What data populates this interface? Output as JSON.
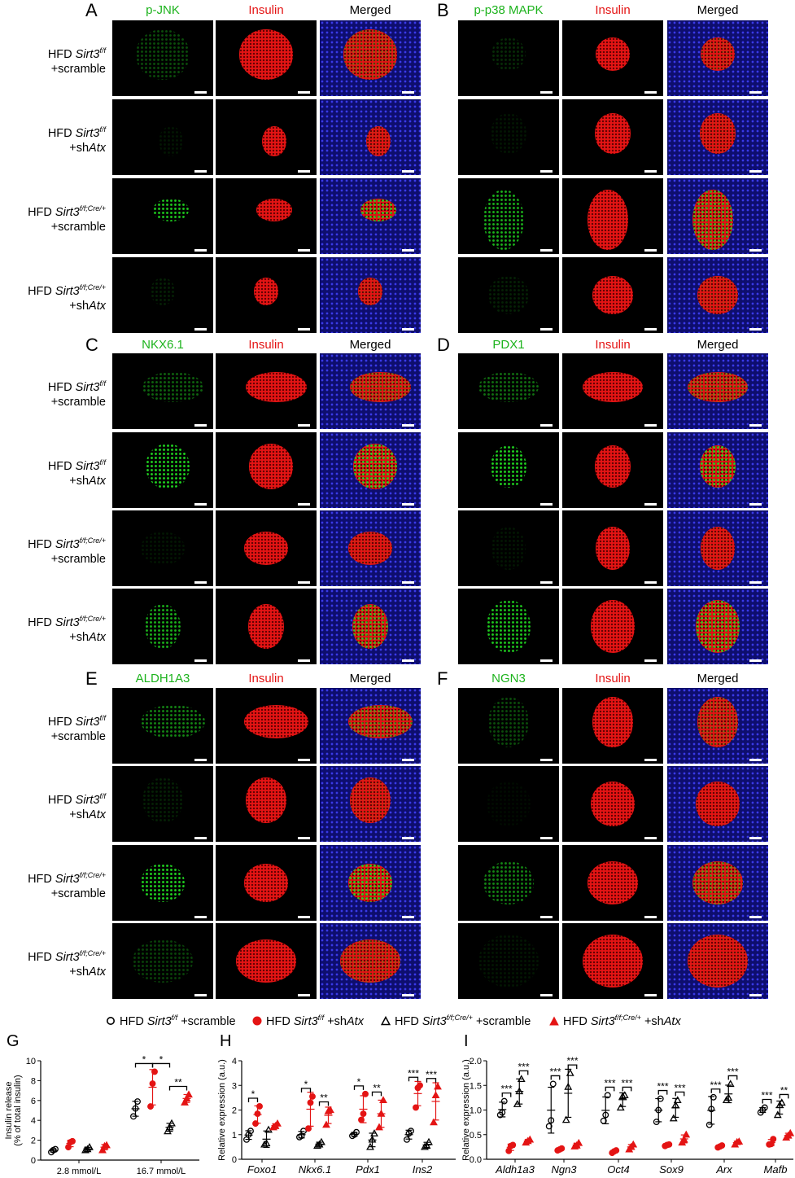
{
  "row_labels": [
    {
      "pre": "HFD ",
      "gene": "Sirt3",
      "genotype": "f/f",
      "l2pre": "+scramble",
      "l2it": ""
    },
    {
      "pre": "HFD ",
      "gene": "Sirt3",
      "genotype": "f/f",
      "l2pre": "+sh",
      "l2it": "Atx"
    },
    {
      "pre": "HFD ",
      "gene": "Sirt3",
      "genotype": "f/f;Cre/+",
      "l2pre": "+scramble",
      "l2it": ""
    },
    {
      "pre": "HFD ",
      "gene": "Sirt3",
      "genotype": "f/f;Cre/+",
      "l2pre": "+sh",
      "l2it": "Atx"
    }
  ],
  "panels": [
    {
      "letter": "A",
      "channels": [
        "p-JNK",
        "Insulin",
        "Merged"
      ]
    },
    {
      "letter": "B",
      "channels": [
        "p-p38 MAPK",
        "Insulin",
        "Merged"
      ]
    },
    {
      "letter": "C",
      "channels": [
        "NKX6.1",
        "Insulin",
        "Merged"
      ]
    },
    {
      "letter": "D",
      "channels": [
        "PDX1",
        "Insulin",
        "Merged"
      ]
    },
    {
      "letter": "E",
      "channels": [
        "ALDH1A3",
        "Insulin",
        "Merged"
      ]
    },
    {
      "letter": "F",
      "channels": [
        "NGN3",
        "Insulin",
        "Merged"
      ]
    }
  ],
  "colors": {
    "green": "#1db31d",
    "red": "#e41414",
    "black": "#000000",
    "blue": "#0e0e6e"
  },
  "legend": [
    {
      "symbol": "open-circle",
      "pre": "HFD ",
      "gene": "Sirt3",
      "genotype": "f/f",
      "post": " +scramble",
      "postit": ""
    },
    {
      "symbol": "filled-circle-red",
      "pre": "HFD ",
      "gene": "Sirt3",
      "genotype": "f/f",
      "post": " +sh",
      "postit": "Atx"
    },
    {
      "symbol": "open-triangle",
      "pre": "HFD ",
      "gene": "Sirt3",
      "genotype": "f/f;Cre/+",
      "post": " +scramble",
      "postit": ""
    },
    {
      "symbol": "filled-triangle-red",
      "pre": "HFD ",
      "gene": "Sirt3",
      "genotype": "f/f;Cre/+",
      "post": " +sh",
      "postit": "Atx"
    }
  ],
  "chart_data": [
    {
      "letter": "G",
      "type": "scatter",
      "ylabel": [
        "Insulin release",
        "(% of total insulin)"
      ],
      "ylim": [
        0,
        10
      ],
      "yticks": [
        0,
        2,
        4,
        6,
        8,
        10
      ],
      "categories": [
        "2.8 mmol/L",
        "16.7 mmol/L"
      ],
      "italic_categories": false,
      "groups": [
        [
          [
            0.8,
            1.0,
            1.1
          ],
          [
            1.3,
            1.8,
            1.9
          ],
          [
            1.0,
            1.1,
            1.3
          ],
          [
            1.0,
            1.4,
            1.5
          ]
        ],
        [
          [
            4.4,
            5.2,
            5.9
          ],
          [
            5.4,
            7.7,
            8.9
          ],
          [
            2.9,
            3.3,
            3.7
          ],
          [
            5.8,
            6.2,
            6.6
          ]
        ]
      ],
      "significance": [
        {
          "category": 1,
          "from": 0,
          "to": 1,
          "label": "*"
        },
        {
          "category": 1,
          "from": 1,
          "to": 2,
          "label": "*"
        },
        {
          "category": 1,
          "from": 2,
          "to": 3,
          "label": "**"
        }
      ]
    },
    {
      "letter": "H",
      "type": "scatter",
      "ylabel": [
        "Relative expression (a.u.)"
      ],
      "ylim": [
        0,
        4
      ],
      "yticks": [
        0,
        1,
        2,
        3,
        4
      ],
      "categories": [
        "Foxo1",
        "Nkx6.1",
        "Pdx1",
        "Ins2"
      ],
      "italic_categories": true,
      "groups": [
        [
          [
            0.8,
            1.0,
            1.15
          ],
          [
            1.45,
            1.85,
            2.15
          ],
          [
            0.6,
            0.65,
            1.2
          ],
          [
            1.3,
            1.35,
            1.45
          ]
        ],
        [
          [
            0.9,
            0.95,
            1.15
          ],
          [
            1.25,
            2.3,
            2.55
          ],
          [
            0.55,
            0.6,
            0.7
          ],
          [
            1.4,
            1.95,
            2.0
          ]
        ],
        [
          [
            0.95,
            1.0,
            1.1
          ],
          [
            1.6,
            1.85,
            2.65
          ],
          [
            0.5,
            0.8,
            1.05
          ],
          [
            1.3,
            1.85,
            2.4
          ]
        ],
        [
          [
            0.8,
            1.05,
            1.15
          ],
          [
            2.1,
            2.9,
            3.0
          ],
          [
            0.5,
            0.55,
            0.7
          ],
          [
            1.5,
            2.6,
            2.95
          ]
        ]
      ],
      "significance": [
        {
          "category": 0,
          "from": 0,
          "to": 1,
          "label": "*"
        },
        {
          "category": 1,
          "from": 0,
          "to": 1,
          "label": "*"
        },
        {
          "category": 1,
          "from": 2,
          "to": 3,
          "label": "**"
        },
        {
          "category": 2,
          "from": 0,
          "to": 1,
          "label": "*"
        },
        {
          "category": 2,
          "from": 2,
          "to": 3,
          "label": "**"
        },
        {
          "category": 3,
          "from": 0,
          "to": 1,
          "label": "***"
        },
        {
          "category": 3,
          "from": 2,
          "to": 3,
          "label": "***"
        }
      ]
    },
    {
      "letter": "I",
      "type": "scatter",
      "ylabel": [
        "Relative expression (a.u.)"
      ],
      "ylim": [
        0,
        2
      ],
      "yticks": [
        0.0,
        0.5,
        1.0,
        1.5,
        2.0
      ],
      "categories": [
        "Aldh1a3",
        "Ngn3",
        "Oct4",
        "Sox9",
        "Arx",
        "Mafb"
      ],
      "italic_categories": true,
      "groups": [
        [
          [
            0.9,
            0.95,
            1.18
          ],
          [
            0.17,
            0.27,
            0.29
          ],
          [
            1.12,
            1.38,
            1.63
          ],
          [
            0.34,
            0.37,
            0.4
          ]
        ],
        [
          [
            0.67,
            0.79,
            1.53
          ],
          [
            0.18,
            0.2,
            0.22
          ],
          [
            0.8,
            1.47,
            1.75
          ],
          [
            0.26,
            0.28,
            0.33
          ]
        ],
        [
          [
            0.78,
            0.9,
            1.3
          ],
          [
            0.13,
            0.16,
            0.18
          ],
          [
            1.05,
            1.28,
            1.3
          ],
          [
            0.2,
            0.25,
            0.3
          ]
        ],
        [
          [
            0.76,
            1.0,
            1.23
          ],
          [
            0.27,
            0.29,
            0.3
          ],
          [
            0.83,
            1.1,
            1.2
          ],
          [
            0.34,
            0.4,
            0.5
          ]
        ],
        [
          [
            0.7,
            1.02,
            1.26
          ],
          [
            0.24,
            0.26,
            0.28
          ],
          [
            1.2,
            1.25,
            1.53
          ],
          [
            0.3,
            0.35,
            0.36
          ]
        ],
        [
          [
            0.95,
            1.0,
            1.05
          ],
          [
            0.3,
            0.31,
            0.41
          ],
          [
            0.9,
            1.1,
            1.15
          ],
          [
            0.44,
            0.48,
            0.53
          ]
        ]
      ],
      "significance": [
        {
          "category": 0,
          "from": 0,
          "to": 1,
          "label": "***"
        },
        {
          "category": 0,
          "from": 2,
          "to": 3,
          "label": "***"
        },
        {
          "category": 1,
          "from": 0,
          "to": 1,
          "label": "***"
        },
        {
          "category": 1,
          "from": 2,
          "to": 3,
          "label": "***"
        },
        {
          "category": 2,
          "from": 0,
          "to": 1,
          "label": "***"
        },
        {
          "category": 2,
          "from": 2,
          "to": 3,
          "label": "***"
        },
        {
          "category": 3,
          "from": 0,
          "to": 1,
          "label": "***"
        },
        {
          "category": 3,
          "from": 2,
          "to": 3,
          "label": "***"
        },
        {
          "category": 4,
          "from": 0,
          "to": 1,
          "label": "***"
        },
        {
          "category": 4,
          "from": 2,
          "to": 3,
          "label": "***"
        },
        {
          "category": 5,
          "from": 0,
          "to": 1,
          "label": "***"
        },
        {
          "category": 5,
          "from": 2,
          "to": 3,
          "label": "**"
        }
      ]
    }
  ]
}
